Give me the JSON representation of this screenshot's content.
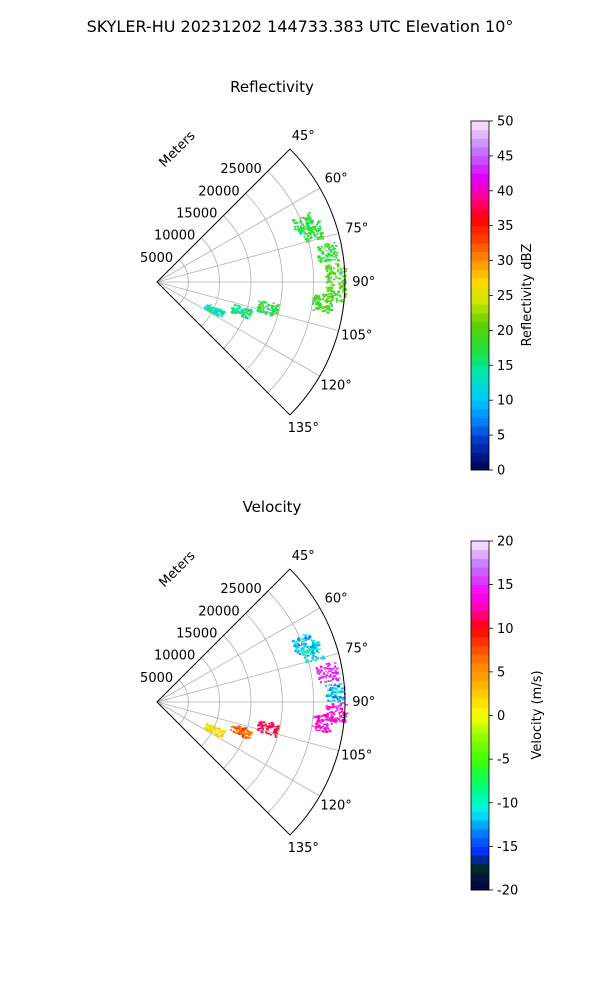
{
  "figure": {
    "title": "SKYLER-HU  20231202  144733.383 UTC Elevation 10°"
  },
  "panels": [
    {
      "id": "reflectivity",
      "title": "Reflectivity",
      "range_label": "Meters",
      "colorbar_label": "Reflectivity dBZ"
    },
    {
      "id": "velocity",
      "title": "Velocity",
      "range_label": "Meters",
      "colorbar_label": "Velocity (m/s)"
    }
  ],
  "chart_data": [
    {
      "type": "polar-sector",
      "title": "Reflectivity",
      "theta_range_deg": [
        45,
        135
      ],
      "theta_ticks": [
        "45°",
        "60°",
        "75°",
        "90°",
        "105°",
        "120°",
        "135°"
      ],
      "r_range_m": [
        0,
        30000
      ],
      "r_ticks": [
        "5000",
        "10000",
        "15000",
        "20000",
        "25000"
      ],
      "r_label": "Meters",
      "grid": true,
      "colorbar": {
        "label": "Reflectivity dBZ",
        "range": [
          0,
          50
        ],
        "ticks": [
          "0",
          "5",
          "10",
          "15",
          "20",
          "25",
          "30",
          "35",
          "40",
          "45",
          "50"
        ]
      },
      "echo_clusters": [
        {
          "azimuth_deg": 68,
          "range_m": 25000,
          "value": 17
        },
        {
          "azimuth_deg": 72,
          "range_m": 26000,
          "value": 18
        },
        {
          "azimuth_deg": 80,
          "range_m": 27500,
          "value": 18
        },
        {
          "azimuth_deg": 87,
          "range_m": 28500,
          "value": 19
        },
        {
          "azimuth_deg": 93,
          "range_m": 28500,
          "value": 20
        },
        {
          "azimuth_deg": 97,
          "range_m": 26500,
          "value": 19
        },
        {
          "azimuth_deg": 103,
          "range_m": 18000,
          "value": 17
        },
        {
          "azimuth_deg": 109,
          "range_m": 14000,
          "value": 15
        },
        {
          "azimuth_deg": 116,
          "range_m": 10000,
          "value": 14
        }
      ]
    },
    {
      "type": "polar-sector",
      "title": "Velocity",
      "theta_range_deg": [
        45,
        135
      ],
      "theta_ticks": [
        "45°",
        "60°",
        "75°",
        "90°",
        "105°",
        "120°",
        "135°"
      ],
      "r_range_m": [
        0,
        30000
      ],
      "r_ticks": [
        "5000",
        "10000",
        "15000",
        "20000",
        "25000"
      ],
      "r_label": "Meters",
      "grid": true,
      "colorbar": {
        "label": "Velocity (m/s)",
        "range": [
          -20,
          20
        ],
        "ticks": [
          "-20",
          "-15",
          "-10",
          "-5",
          "0",
          "5",
          "10",
          "15",
          "20"
        ]
      },
      "echo_clusters": [
        {
          "azimuth_deg": 68,
          "range_m": 25000,
          "value": -12
        },
        {
          "azimuth_deg": 72,
          "range_m": 26000,
          "value": -11
        },
        {
          "azimuth_deg": 80,
          "range_m": 27500,
          "value": 15
        },
        {
          "azimuth_deg": 87,
          "range_m": 28500,
          "value": -12
        },
        {
          "azimuth_deg": 93,
          "range_m": 28500,
          "value": 14
        },
        {
          "azimuth_deg": 97,
          "range_m": 26500,
          "value": 14
        },
        {
          "azimuth_deg": 103,
          "range_m": 18000,
          "value": 11
        },
        {
          "azimuth_deg": 109,
          "range_m": 14000,
          "value": 7
        },
        {
          "azimuth_deg": 116,
          "range_m": 10000,
          "value": 1
        }
      ]
    }
  ]
}
